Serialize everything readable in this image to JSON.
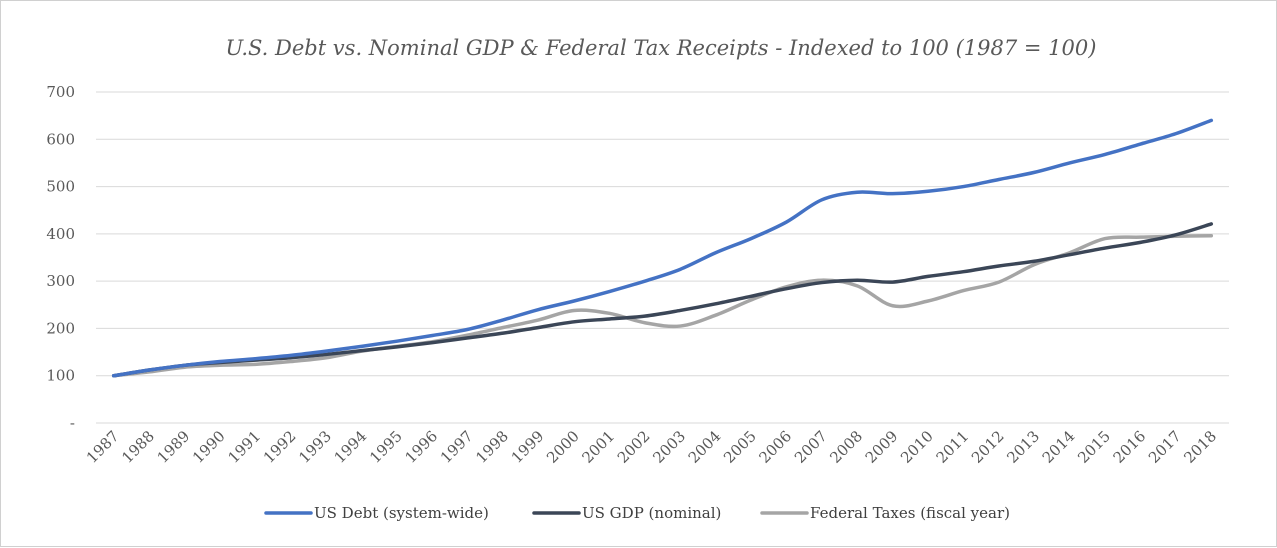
{
  "chart_data": {
    "type": "line",
    "title": "U.S. Debt vs. Nominal GDP & Federal Tax Receipts - Indexed to 100 (1987 = 100)",
    "xlabel": "",
    "ylabel": "",
    "ylim": [
      0,
      700
    ],
    "yticks": [
      0,
      100,
      200,
      300,
      400,
      500,
      600,
      700
    ],
    "ytick_labels": [
      "-",
      "100",
      "200",
      "300",
      "400",
      "500",
      "600",
      "700"
    ],
    "grid": true,
    "legend": "bottom",
    "x": [
      "1987",
      "1988",
      "1989",
      "1990",
      "1991",
      "1992",
      "1993",
      "1994",
      "1995",
      "1996",
      "1997",
      "1998",
      "1999",
      "2000",
      "2001",
      "2002",
      "2003",
      "2004",
      "2005",
      "2006",
      "2007",
      "2008",
      "2009",
      "2010",
      "2011",
      "2012",
      "2013",
      "2014",
      "2015",
      "2016",
      "2017",
      "2018"
    ],
    "series": [
      {
        "name": "US Debt (system-wide)",
        "color": "#4472c4",
        "values": [
          100,
          112,
          122,
          130,
          136,
          143,
          152,
          162,
          173,
          185,
          198,
          218,
          240,
          258,
          278,
          300,
          325,
          360,
          390,
          425,
          472,
          488,
          485,
          490,
          500,
          515,
          530,
          550,
          568,
          590,
          612,
          640
        ]
      },
      {
        "name": "US GDP (nominal)",
        "color": "#3b4657",
        "values": [
          100,
          112,
          122,
          128,
          133,
          138,
          145,
          153,
          161,
          170,
          180,
          190,
          202,
          214,
          220,
          226,
          238,
          252,
          268,
          284,
          297,
          302,
          298,
          310,
          320,
          332,
          342,
          356,
          370,
          382,
          398,
          421
        ]
      },
      {
        "name": "Federal Taxes (fiscal year)",
        "color": "#a5a5a5",
        "values": [
          100,
          108,
          118,
          122,
          124,
          130,
          138,
          152,
          162,
          172,
          186,
          202,
          218,
          238,
          232,
          212,
          205,
          228,
          260,
          288,
          302,
          290,
          248,
          258,
          280,
          298,
          335,
          360,
          390,
          393,
          395,
          396
        ]
      }
    ]
  }
}
